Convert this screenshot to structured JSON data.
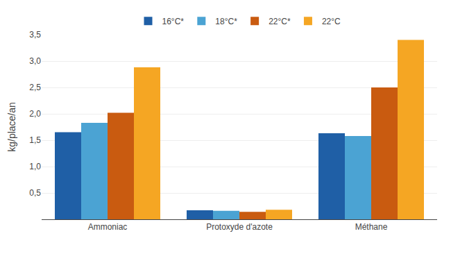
{
  "chart_data": {
    "type": "bar",
    "categories": [
      "Ammoniac",
      "Protoxyde d'azote",
      "Méthane"
    ],
    "series": [
      {
        "name": "16°C*",
        "color": "#1F5FA6",
        "values": [
          1.65,
          0.17,
          1.63
        ]
      },
      {
        "name": "18°C*",
        "color": "#4BA3D3",
        "values": [
          1.83,
          0.16,
          1.58
        ]
      },
      {
        "name": "22°C*",
        "color": "#C95B10",
        "values": [
          2.02,
          0.14,
          2.5
        ]
      },
      {
        "name": "22°C",
        "color": "#F5A623",
        "values": [
          2.88,
          0.18,
          3.4
        ]
      }
    ],
    "ylabel": "kg/place/an",
    "ylim": [
      0,
      3.5
    ],
    "yticks": [
      {
        "value": 0.5,
        "label": "0,5"
      },
      {
        "value": 1.0,
        "label": "1,0"
      },
      {
        "value": 1.5,
        "label": "1,5"
      },
      {
        "value": 2.0,
        "label": "2,0"
      },
      {
        "value": 2.5,
        "label": "2,5"
      },
      {
        "value": 3.0,
        "label": "3,0"
      },
      {
        "value": 3.5,
        "label": "3,5"
      }
    ],
    "grid": true,
    "legend": "top"
  }
}
